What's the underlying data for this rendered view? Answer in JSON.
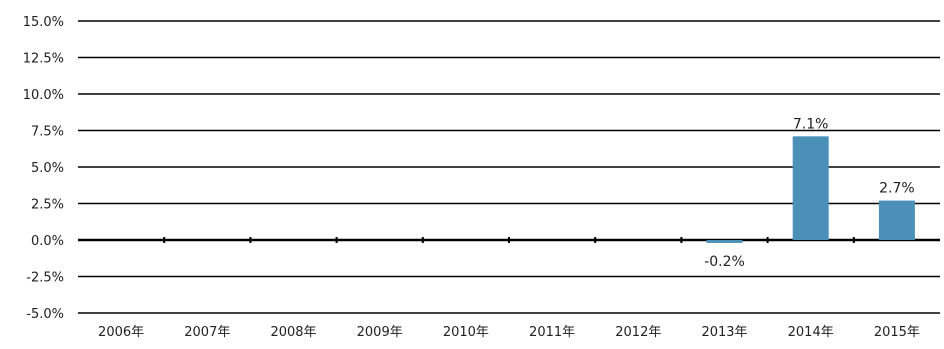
{
  "chart_data": {
    "type": "bar",
    "categories": [
      "2006年",
      "2007年",
      "2008年",
      "2009年",
      "2010年",
      "2011年",
      "2012年",
      "2013年",
      "2014年",
      "2015年"
    ],
    "values": [
      null,
      null,
      null,
      null,
      null,
      null,
      null,
      -0.2,
      7.1,
      2.7
    ],
    "data_labels": [
      "",
      "",
      "",
      "",
      "",
      "",
      "",
      "-0.2%",
      "7.1%",
      "2.7%"
    ],
    "y_ticks": [
      15.0,
      12.5,
      10.0,
      7.5,
      5.0,
      2.5,
      0.0,
      -2.5,
      -5.0
    ],
    "y_tick_labels": [
      "15.0%",
      "12.5%",
      "10.0%",
      "7.5%",
      "5.0%",
      "2.5%",
      "0.0%",
      "-2.5%",
      "-5.0%"
    ],
    "ylim": [
      -5.0,
      15.0
    ],
    "title": "",
    "xlabel": "",
    "ylabel": "",
    "grid": true,
    "legend": "none",
    "bar_color": "#4a90b8",
    "grid_color": "#000000"
  }
}
